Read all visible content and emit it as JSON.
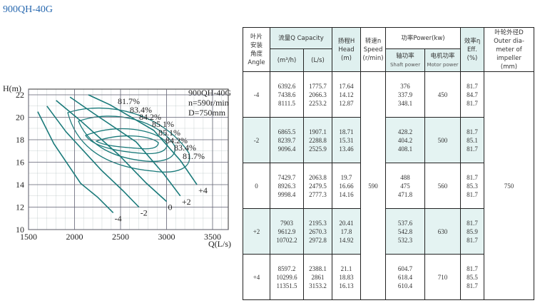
{
  "title": "900QH-40G",
  "chart_data": {
    "type": "line",
    "y_label": "H(m)",
    "x_label": "Q(L/s)",
    "info": [
      "900QH-40G",
      "n=590r/min",
      "D=750mm"
    ],
    "xlim": [
      1500,
      3500
    ],
    "xticks": [
      1500,
      2000,
      2500,
      3000,
      3500
    ],
    "ylim": [
      10,
      22
    ],
    "yticks": [
      10,
      12,
      14,
      16,
      18,
      20,
      22
    ],
    "grid": true,
    "efficiency_labels": [
      "81.7%",
      "83.4%",
      "84.2%",
      "85.1%",
      "85.1%",
      "84.2%",
      "83.4%",
      "81.7%"
    ],
    "series": [
      {
        "name": "-4",
        "color": "#1a7a7a",
        "x": [
          1600,
          1776,
          2066,
          2253,
          2420
        ],
        "values": [
          20.5,
          17.64,
          14.12,
          12.87,
          11.5
        ]
      },
      {
        "name": "-2",
        "color": "#1a7a7a",
        "x": [
          1700,
          1907,
          2289,
          2526,
          2700
        ],
        "values": [
          21,
          18.71,
          15.31,
          13.46,
          12
        ]
      },
      {
        "name": "0",
        "color": "#1a7a7a",
        "x": [
          1800,
          2064,
          2480,
          2777,
          3000
        ],
        "values": [
          21.5,
          19.7,
          16.66,
          14.16,
          12.5
        ]
      },
      {
        "name": "+2",
        "color": "#1a7a7a",
        "x": [
          1950,
          2195,
          2670,
          2973,
          3150
        ],
        "values": [
          21.8,
          20.41,
          17.8,
          14.92,
          13
        ]
      },
      {
        "name": "+4",
        "color": "#1a7a7a",
        "x": [
          2150,
          2388,
          2861,
          3153,
          3330
        ],
        "values": [
          22,
          21.1,
          18.83,
          16.13,
          14
        ]
      }
    ]
  },
  "table": {
    "header": {
      "angle": [
        "叶片",
        "安装",
        "角度",
        "Angle"
      ],
      "capacity": "流量Q Capacity",
      "m3h": "(m³/h)",
      "ls": "(L/s)",
      "head": [
        "扬程H",
        "Head",
        "(m)"
      ],
      "speed": [
        "转速n",
        "Speed",
        "(r/min)"
      ],
      "power": "功率Power(kw)",
      "shaft": [
        "轴功率",
        "Shaft power"
      ],
      "motor": [
        "电机功率",
        "Motor power"
      ],
      "eff": [
        "效率η",
        "Eff.",
        "(%)"
      ],
      "diameter": [
        "叶轮外径D",
        "Outer dia-",
        "meter of",
        "impeller",
        "(mm)"
      ]
    },
    "speed": "590",
    "diameter": "750",
    "rows": [
      {
        "angle": "-4",
        "m3h": [
          "6392.6",
          "7438.6",
          "8111.5"
        ],
        "ls": [
          "1775.7",
          "2066.3",
          "2253.2"
        ],
        "head": [
          "17.64",
          "14.12",
          "12.87"
        ],
        "shaft": [
          "376",
          "337.9",
          "348.1"
        ],
        "motor": "450",
        "eff": [
          "81.7",
          "84.7",
          "81.7"
        ]
      },
      {
        "angle": "-2",
        "m3h": [
          "6865.5",
          "8239.7",
          "9096.4"
        ],
        "ls": [
          "1907.1",
          "2288.8",
          "2525.9"
        ],
        "head": [
          "18.71",
          "15.31",
          "13.46"
        ],
        "shaft": [
          "428.2",
          "404.2",
          "408.1"
        ],
        "motor": "500",
        "eff": [
          "81.7",
          "85.1",
          "81.7"
        ]
      },
      {
        "angle": "0",
        "m3h": [
          "7429.7",
          "8926.3",
          "9998.4"
        ],
        "ls": [
          "2063.8",
          "2479.5",
          "2777.3"
        ],
        "head": [
          "19.7",
          "16.66",
          "14.16"
        ],
        "shaft": [
          "488",
          "475",
          "471.8"
        ],
        "motor": "560",
        "eff": [
          "81.7",
          "85.3",
          "81.7"
        ]
      },
      {
        "angle": "+2",
        "m3h": [
          "7903",
          "9612.9",
          "10702.2"
        ],
        "ls": [
          "2195.3",
          "2670.3",
          "2972.8"
        ],
        "head": [
          "20.41",
          "17.8",
          "14.92"
        ],
        "shaft": [
          "537.6",
          "542.8",
          "532.3"
        ],
        "motor": "630",
        "eff": [
          "81.7",
          "85.9",
          "81.7"
        ]
      },
      {
        "angle": "+4",
        "m3h": [
          "8597.2",
          "10299.6",
          "11351.5"
        ],
        "ls": [
          "2388.1",
          "2861",
          "3153.2"
        ],
        "head": [
          "21.1",
          "18.83",
          "16.13"
        ],
        "shaft": [
          "604.7",
          "618.4",
          "610.4"
        ],
        "motor": "710",
        "eff": [
          "81.7",
          "85.5",
          "81.7"
        ]
      }
    ]
  }
}
